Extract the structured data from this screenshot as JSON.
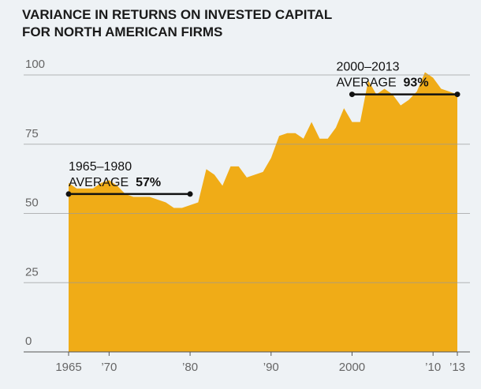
{
  "chart_data": {
    "type": "area",
    "title": "VARIANCE IN RETURNS ON INVESTED CAPITAL FOR NORTH AMERICAN FIRMS",
    "x": [
      1965,
      1966,
      1967,
      1968,
      1969,
      1970,
      1971,
      1972,
      1973,
      1974,
      1975,
      1976,
      1977,
      1978,
      1979,
      1980,
      1981,
      1982,
      1983,
      1984,
      1985,
      1986,
      1987,
      1988,
      1989,
      1990,
      1991,
      1992,
      1993,
      1994,
      1995,
      1996,
      1997,
      1998,
      1999,
      2000,
      2001,
      2002,
      2003,
      2004,
      2005,
      2006,
      2007,
      2008,
      2009,
      2010,
      2011,
      2012,
      2013
    ],
    "values": [
      61,
      59,
      59,
      59,
      61,
      62,
      60,
      57,
      56,
      56,
      56,
      55,
      54,
      52,
      52,
      53,
      54,
      66,
      64,
      60,
      67,
      67,
      63,
      64,
      65,
      70,
      78,
      79,
      79,
      77,
      83,
      77,
      77,
      81,
      88,
      83,
      83,
      98,
      93,
      95,
      93,
      89,
      91,
      94,
      101,
      99,
      95,
      94,
      93
    ],
    "color": "#f0ac17",
    "xlim": [
      1965,
      2013
    ],
    "xticks": [
      1965,
      {
        "value": 1970,
        "label": "’70"
      },
      {
        "value": 1980,
        "label": "’80"
      },
      {
        "value": 1990,
        "label": "’90"
      },
      2000,
      {
        "value": 2010,
        "label": "’10"
      },
      {
        "value": 2013,
        "label": "’13"
      }
    ],
    "ylim": [
      0,
      100
    ],
    "yticks": [
      0,
      25,
      50,
      75,
      100
    ],
    "grid": true,
    "annotations": [
      {
        "period": "1965–1980",
        "text": "AVERAGE",
        "value": 57,
        "value_label": "57%",
        "range": [
          1965,
          1980
        ]
      },
      {
        "period": "2000–2013",
        "text": "AVERAGE",
        "value": 93,
        "value_label": "93%",
        "range": [
          2000,
          2013
        ]
      }
    ]
  }
}
